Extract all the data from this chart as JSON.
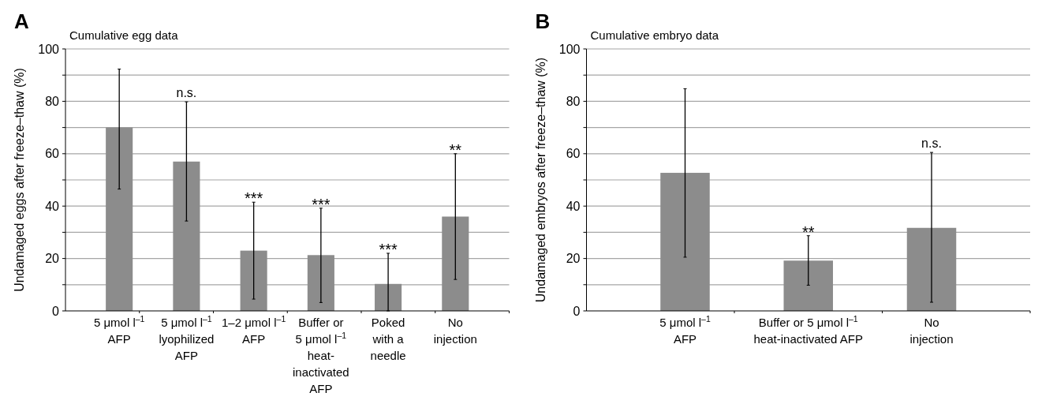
{
  "chart_data": [
    {
      "type": "bar",
      "title": "Cumulative egg data",
      "ylabel": "Undamaged eggs after freeze–thaw (%)",
      "categories": [
        "5 μmol l$^{–1}$\nAFP",
        "5 μmol l$^{–1}$\nlyophilized\nAFP",
        "1–2 μmol l$^{–1}$\nAFP",
        "Buffer or\n5 μmol l$^{–1}$\nheat-\ninactivated\nAFP",
        "Poked\nwith a\nneedle",
        "No\ninjection"
      ],
      "values": [
        70,
        57,
        23,
        21.3,
        10.3,
        36
      ],
      "color": "#8c8c8c",
      "errors": [
        [
          46.5,
          92.3
        ],
        [
          34.3,
          79.8
        ],
        [
          4.5,
          41.5
        ],
        [
          3.2,
          39.2
        ],
        [
          0,
          22
        ],
        [
          12,
          60
        ]
      ],
      "ylim": [
        0,
        100
      ],
      "yticks": [
        0,
        {
          "value": 10,
          "label": null
        },
        20,
        {
          "value": 30,
          "label": null
        },
        40,
        {
          "value": 50,
          "label": null
        },
        60,
        {
          "value": 70,
          "label": null
        },
        80,
        {
          "value": 90,
          "label": null
        },
        100
      ],
      "grid": "y",
      "annotations": [
        "A",
        {
          "text": "n.s.",
          "x": "5 μmol l$^{–1}$\nlyophilized\nAFP",
          "y": 79.8
        },
        {
          "text": "***",
          "x": "1–2 μmol l$^{–1}$\nAFP",
          "y": 41.5
        },
        {
          "text": "***",
          "x": "Buffer or\n5 μmol l$^{–1}$\nheat-\ninactivated\nAFP",
          "y": 39.2
        },
        {
          "text": "***",
          "x": "Poked\nwith a\nneedle",
          "y": 22
        },
        {
          "text": "**",
          "x": "No\ninjection",
          "y": 60
        }
      ]
    },
    {
      "type": "bar",
      "title": "Cumulative embryo data",
      "ylabel": "Undamaged embryos after freeze–thaw (%)",
      "categories": [
        "5 μmol l$^{–1}$\nAFP",
        "Buffer or 5 μmol l$^{–1}$\nheat-inactivated AFP",
        "No\ninjection"
      ],
      "values": [
        52.7,
        19.2,
        31.7
      ],
      "color": "#8c8c8c",
      "errors": [
        [
          20.5,
          84.8
        ],
        [
          9.8,
          28.7
        ],
        [
          3.3,
          60.5
        ]
      ],
      "ylim": [
        0,
        100
      ],
      "yticks": [
        0,
        {
          "value": 10,
          "label": null
        },
        20,
        {
          "value": 30,
          "label": null
        },
        40,
        {
          "value": 50,
          "label": null
        },
        60,
        {
          "value": 70,
          "label": null
        },
        80,
        {
          "value": 90,
          "label": null
        },
        100
      ],
      "grid": "y",
      "annotations": [
        "B",
        {
          "text": "**",
          "x": "Buffer or 5 μmol l$^{–1}$\nheat-inactivated AFP",
          "y": 28.7
        },
        {
          "text": "n.s.",
          "x": "No\ninjection",
          "y": 60.5
        }
      ]
    }
  ]
}
